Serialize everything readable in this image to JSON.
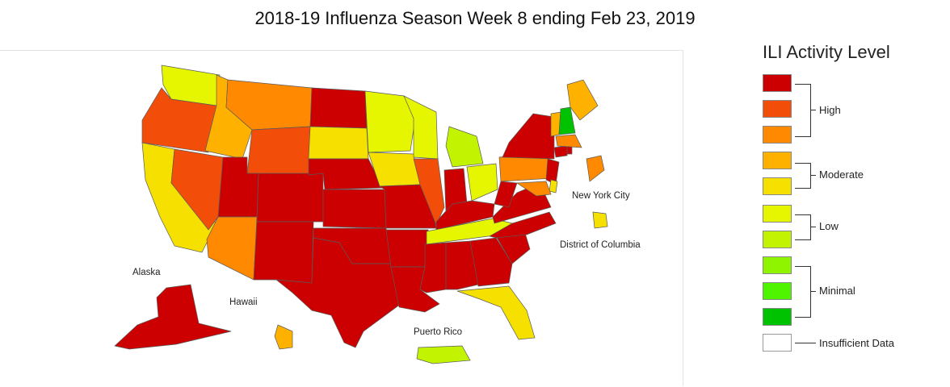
{
  "title": "2018-19 Influenza Season Week 8 ending Feb 23, 2019",
  "legend": {
    "title": "ILI Activity Level",
    "levels": [
      {
        "level": 10,
        "color": "#cc0000"
      },
      {
        "level": 9,
        "color": "#f24e0a"
      },
      {
        "level": 8,
        "color": "#ff8900"
      },
      {
        "level": 7,
        "color": "#ffb100"
      },
      {
        "level": 6,
        "color": "#f6e000"
      },
      {
        "level": 5,
        "color": "#e5f600"
      },
      {
        "level": 4,
        "color": "#c2f300"
      },
      {
        "level": 3,
        "color": "#8ff400"
      },
      {
        "level": 2,
        "color": "#4ef400"
      },
      {
        "level": 1,
        "color": "#00c200"
      },
      {
        "level": 0,
        "color": "#ffffff"
      }
    ],
    "groups": {
      "high": "High",
      "moderate": "Moderate",
      "low": "Low",
      "minimal": "Minimal",
      "insufficient": "Insufficient Data"
    }
  },
  "map": {
    "labels": {
      "new_york_city": "New York City",
      "district_of_columbia": "District of Columbia",
      "alaska": "Alaska",
      "hawaii": "Hawaii",
      "puerto_rico": "Puerto Rico"
    },
    "state_levels": {
      "WA": 5,
      "OR": 9,
      "ID": 7,
      "MT": 8,
      "WY": 9,
      "ND": 10,
      "SD": 6,
      "MN": 5,
      "WI": 5,
      "MI": 4,
      "IA": 6,
      "IL": 9,
      "IN": 10,
      "OH": 5,
      "NY": 10,
      "VT": 7,
      "NH": 1,
      "ME": 7,
      "MA": 8,
      "RI": 10,
      "CT": 10,
      "NJ": 10,
      "PA": 8,
      "DE": 6,
      "MD": 8,
      "CA": 6,
      "NV": 9,
      "UT": 10,
      "CO": 10,
      "AZ": 8,
      "NM": 10,
      "NE": 10,
      "KS": 10,
      "OK": 10,
      "TX": 10,
      "MO": 10,
      "AR": 10,
      "LA": 10,
      "MS": 10,
      "AL": 10,
      "GA": 10,
      "FL": 6,
      "SC": 10,
      "NC": 10,
      "VA": 10,
      "WV": 10,
      "KY": 10,
      "TN": 5,
      "AK": 10,
      "HI": 7,
      "PR": 4,
      "NYC": 8,
      "DC": 6
    }
  }
}
